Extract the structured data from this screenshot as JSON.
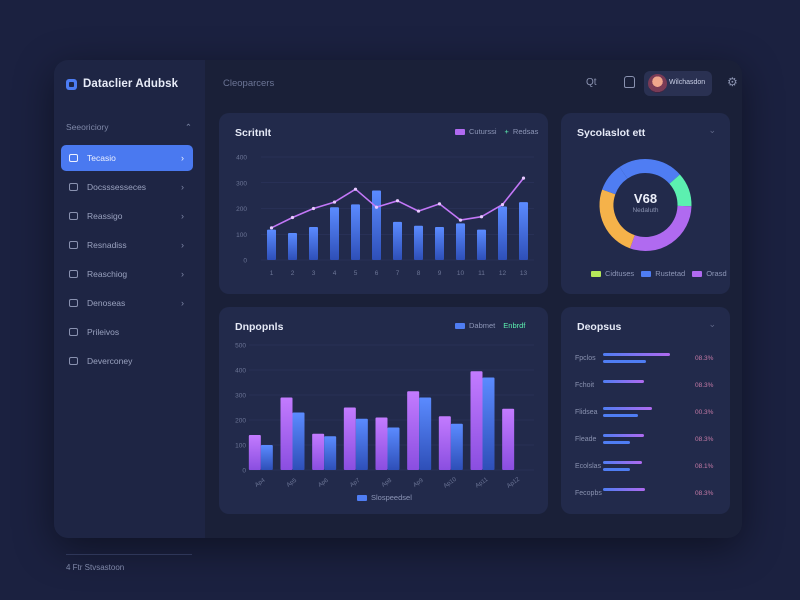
{
  "app": {
    "name": "Dataclier Adubsk",
    "header_title": "Cleoparcers",
    "user_name": "Wilchasdon"
  },
  "sidebar": {
    "section_label": "Seeoriciory",
    "items": [
      {
        "label": "Tecasio",
        "icon": "grid-icon",
        "active": true
      },
      {
        "label": "Docsssesseces",
        "icon": "document-icon",
        "active": false
      },
      {
        "label": "Reassigo",
        "icon": "chart-icon",
        "active": false
      },
      {
        "label": "Resnadiss",
        "icon": "folder-icon",
        "active": false
      },
      {
        "label": "Reaschiog",
        "icon": "users-icon",
        "active": false
      },
      {
        "label": "Denoseas",
        "icon": "clock-icon",
        "active": false
      },
      {
        "label": "Prileivos",
        "icon": "settings-icon",
        "active": false
      },
      {
        "label": "Deverconey",
        "icon": "file-icon",
        "active": false
      }
    ],
    "footer": "4 Ftr Stvsastoon"
  },
  "colors": {
    "accent": "#4a79f0",
    "purple": "#b06af0",
    "blue": "#4f7df3",
    "teal": "#5cf0b0",
    "orange": "#f5b24a"
  },
  "cards": {
    "top_left": {
      "title": "Scritnlt",
      "legend": [
        "Cuturssi",
        "Redsas"
      ],
      "chart_data": {
        "type": "bar",
        "x": [
          "1",
          "2",
          "3",
          "4",
          "5",
          "6",
          "7",
          "8",
          "9",
          "10",
          "11",
          "12",
          "13"
        ],
        "y_ticks": [
          "0",
          "100",
          "200",
          "300",
          "400"
        ],
        "series": [
          {
            "name": "Cuturssi",
            "values": [
              118,
              105,
              128,
              205,
              216,
              270,
              148,
              133,
              128,
              142,
              118,
              208,
              225
            ]
          },
          {
            "name": "Redsas",
            "values": [
              125,
              165,
              200,
              225,
              275,
              205,
              230,
              190,
              218,
              155,
              168,
              215,
              318
            ]
          }
        ],
        "ylim": [
          0,
          400
        ]
      }
    },
    "top_right": {
      "title": "Sycolaslot ett",
      "center_value": "V68",
      "center_sub": "Nedaluth",
      "legend": [
        "Cidtuses",
        "Rustetad",
        "Orasd"
      ],
      "chart_data": {
        "type": "pie",
        "values": [
          23,
          12,
          30,
          25,
          10
        ]
      }
    },
    "bottom_left": {
      "title": "Dnpopnls",
      "legend": [
        "Dabmet",
        "Enbrdf"
      ],
      "legend_bottom": "Slospeedsel",
      "chart_data": {
        "type": "bar",
        "x": [
          "Ap4",
          "Ap5",
          "Ap6",
          "Ap7",
          "Ap8",
          "Ap9",
          "Ap10",
          "Ap11",
          "Ap12"
        ],
        "y_ticks": [
          "0",
          "100",
          "200",
          "300",
          "400",
          "500"
        ],
        "series": [
          {
            "name": "Dabmet",
            "values": [
              140,
              290,
              145,
              250,
              210,
              315,
              215,
              395,
              245
            ]
          },
          {
            "name": "Enbrdf",
            "values": [
              100,
              230,
              135,
              205,
              170,
              290,
              185,
              370,
              0
            ]
          }
        ],
        "ylim": [
          0,
          500
        ]
      }
    },
    "bottom_right": {
      "title": "Deopsus",
      "rows": [
        {
          "label": "Fpclos",
          "value": "08.3%",
          "a": 0.95,
          "b": 0.62
        },
        {
          "label": "Fchoit",
          "value": "08.3%",
          "a": 0.58,
          "b": 0.0
        },
        {
          "label": "Flidsea",
          "value": "00.3%",
          "a": 0.7,
          "b": 0.5
        },
        {
          "label": "Fleade",
          "value": "08.3%",
          "a": 0.58,
          "b": 0.38
        },
        {
          "label": "Ecolslas",
          "value": "08.1%",
          "a": 0.56,
          "b": 0.38
        },
        {
          "label": "Fecopbs",
          "value": "08.3%",
          "a": 0.6,
          "b": 0.0
        }
      ]
    }
  }
}
